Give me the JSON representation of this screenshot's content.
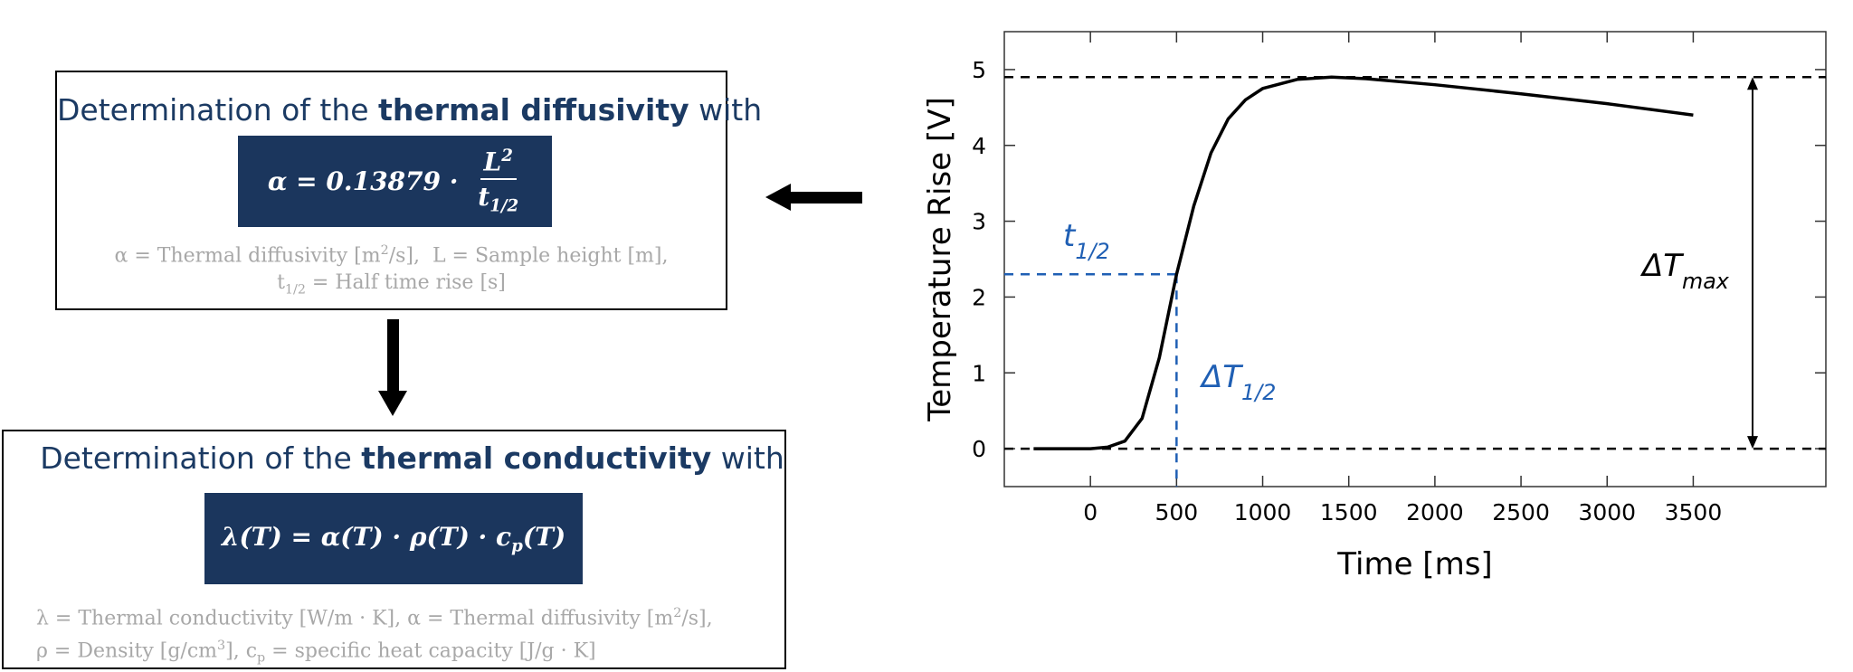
{
  "steps": [
    {
      "heading": [
        {
          "text": "Determination of the "
        },
        {
          "text": "thermal diffusivity",
          "bold": true
        },
        {
          "text": " with"
        }
      ],
      "formula": {
        "lhs": [
          {
            "text": "α = 0.13879 · "
          }
        ],
        "numerator": [
          {
            "text": "L"
          },
          {
            "text": "2",
            "sup": true
          }
        ],
        "denominator": [
          {
            "text": "t"
          },
          {
            "text": "1/2",
            "sub": true
          }
        ]
      },
      "notes": [
        [
          {
            "text": "α = Thermal diffusivity [m"
          },
          {
            "text": "2",
            "sup": true
          },
          {
            "text": "/s],  L = Sample height [m],"
          }
        ],
        [
          {
            "text": "t"
          },
          {
            "text": "1/2",
            "sub": true
          },
          {
            "text": " = Half time rise [s]"
          }
        ]
      ]
    },
    {
      "heading": [
        {
          "text": "Determination of the "
        },
        {
          "text": "thermal conductivity",
          "bold": true
        },
        {
          "text": " with"
        }
      ],
      "formula": {
        "lhs": [
          {
            "text": "λ(T) = α(T) · ρ(T) · c"
          },
          {
            "text": "p",
            "sub": true
          },
          {
            "text": "(T)"
          }
        ]
      },
      "notes": [
        [
          {
            "text": "λ = Thermal conductivity [W/m · K], α = Thermal diffusivity [m"
          },
          {
            "text": "2",
            "sup": true
          },
          {
            "text": "/s],"
          }
        ],
        [
          {
            "text": "ρ = Density [g/cm"
          },
          {
            "text": "3",
            "sup": true
          },
          {
            "text": "], c"
          },
          {
            "text": "p",
            "sub": true
          },
          {
            "text": " = specific heat capacity [J/g · K]"
          }
        ]
      ]
    }
  ],
  "chart_data": {
    "type": "line",
    "x_label": "Time [ms]",
    "y_label": "Temperature Rise [V]",
    "x": [
      -330,
      0,
      100,
      200,
      300,
      400,
      500,
      600,
      700,
      800,
      900,
      1000,
      1200,
      1400,
      1600,
      2000,
      2500,
      3000,
      3500
    ],
    "series": [
      {
        "color": "#000000",
        "values": [
          0,
          0,
          0.02,
          0.1,
          0.4,
          1.2,
          2.3,
          3.2,
          3.9,
          4.35,
          4.6,
          4.75,
          4.87,
          4.9,
          4.88,
          4.8,
          4.68,
          4.55,
          4.4
        ]
      }
    ],
    "xlim": [
      -500,
      4270
    ],
    "ylim": [
      -0.5,
      5.5
    ],
    "xticks": [
      0,
      500,
      1000,
      1500,
      2000,
      2500,
      3000,
      3500
    ],
    "yticks": [
      0,
      1,
      2,
      3,
      4,
      5
    ],
    "baseline": 0,
    "max_rise": 4.9,
    "half_rise": 2.3,
    "half_time": 500,
    "annotation_color": "#1f5fb4",
    "labels": {
      "half_time": [
        {
          "text": "t"
        },
        {
          "text": "1/2",
          "sub": true
        }
      ],
      "half_rise": [
        {
          "text": "ΔT"
        },
        {
          "text": "1/2",
          "sub": true
        }
      ],
      "max_rise": [
        {
          "text": "ΔT"
        },
        {
          "text": "max",
          "sub": true
        }
      ]
    }
  }
}
